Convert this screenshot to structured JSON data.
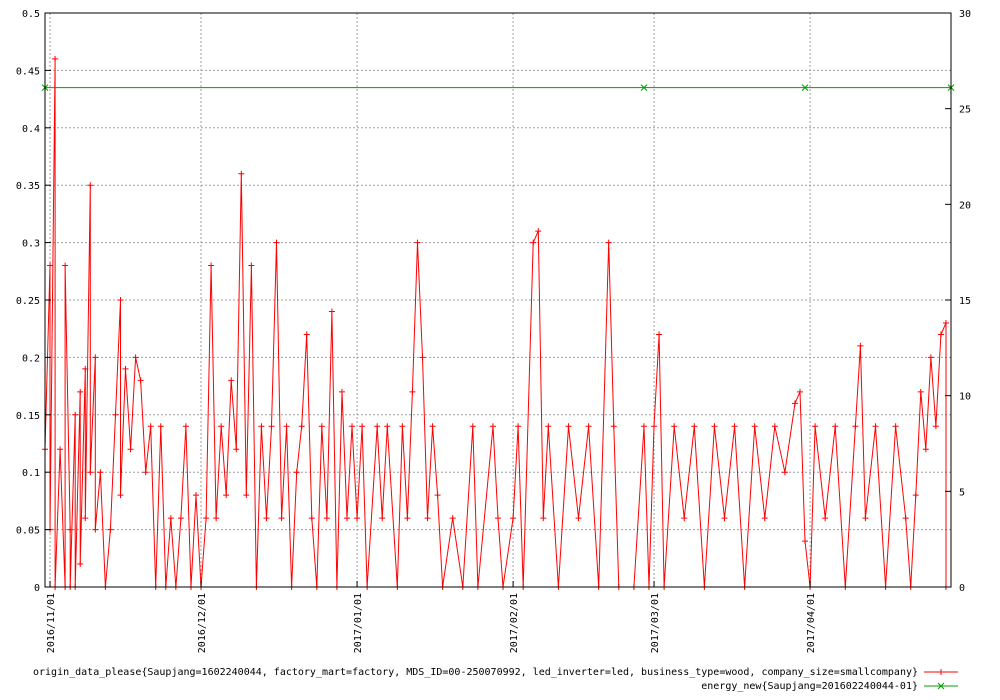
{
  "chart_data": {
    "type": "line",
    "title": "",
    "xlabel": "",
    "ylabel": "",
    "y2label": "",
    "grid": true,
    "legend_position": "bottom-right",
    "x_range": [
      "2016-10-31",
      "2017-04-29"
    ],
    "ylim": [
      0,
      0.5
    ],
    "y2lim": [
      0,
      30
    ],
    "y_ticks": [
      "0",
      "0.05",
      "0.1",
      "0.15",
      "0.2",
      "0.25",
      "0.3",
      "0.35",
      "0.4",
      "0.45",
      "0.5"
    ],
    "y2_ticks": [
      "0",
      "5",
      "10",
      "15",
      "20",
      "25",
      "30"
    ],
    "x_ticks": [
      {
        "date": "2016-11-01",
        "label": "2016/11/01"
      },
      {
        "date": "2016-12-01",
        "label": "2016/12/01"
      },
      {
        "date": "2017-01-01",
        "label": "2017/01/01"
      },
      {
        "date": "2017-02-01",
        "label": "2017/02/01"
      },
      {
        "date": "2017-03-01",
        "label": "2017/03/01"
      },
      {
        "date": "2017-04-01",
        "label": "2017/04/01"
      }
    ],
    "series": [
      {
        "name": "origin_data_please{Saupjang=1602240044, factory_mart=factory, MDS_ID=00-250070992, led_inverter=led, business_type=wood, company_size=smallcompany}",
        "axis": "y1",
        "color": "#ff0000",
        "marker": "plus",
        "points": [
          [
            "2016-10-31",
            0.12
          ],
          [
            "2016-11-01",
            0.28
          ],
          [
            "2016-11-01",
            0.05
          ],
          [
            "2016-11-02",
            0.46
          ],
          [
            "2016-11-02",
            0.0
          ],
          [
            "2016-11-03",
            0.12
          ],
          [
            "2016-11-04",
            0.0
          ],
          [
            "2016-11-04",
            0.28
          ],
          [
            "2016-11-05",
            0.05
          ],
          [
            "2016-11-05",
            0.0
          ],
          [
            "2016-11-06",
            0.15
          ],
          [
            "2016-11-06",
            0.0
          ],
          [
            "2016-11-07",
            0.17
          ],
          [
            "2016-11-07",
            0.02
          ],
          [
            "2016-11-08",
            0.19
          ],
          [
            "2016-11-08",
            0.06
          ],
          [
            "2016-11-09",
            0.35
          ],
          [
            "2016-11-09",
            0.1
          ],
          [
            "2016-11-10",
            0.2
          ],
          [
            "2016-11-10",
            0.05
          ],
          [
            "2016-11-11",
            0.1
          ],
          [
            "2016-11-12",
            0.0
          ],
          [
            "2016-11-13",
            0.05
          ],
          [
            "2016-11-14",
            0.15
          ],
          [
            "2016-11-15",
            0.25
          ],
          [
            "2016-11-15",
            0.08
          ],
          [
            "2016-11-16",
            0.19
          ],
          [
            "2016-11-17",
            0.12
          ],
          [
            "2016-11-18",
            0.2
          ],
          [
            "2016-11-19",
            0.18
          ],
          [
            "2016-11-20",
            0.1
          ],
          [
            "2016-11-21",
            0.14
          ],
          [
            "2016-11-22",
            0.0
          ],
          [
            "2016-11-23",
            0.14
          ],
          [
            "2016-11-24",
            0.0
          ],
          [
            "2016-11-25",
            0.06
          ],
          [
            "2016-11-26",
            0.0
          ],
          [
            "2016-11-27",
            0.06
          ],
          [
            "2016-11-28",
            0.14
          ],
          [
            "2016-11-29",
            0.0
          ],
          [
            "2016-11-30",
            0.08
          ],
          [
            "2016-12-01",
            0.0
          ],
          [
            "2016-12-02",
            0.06
          ],
          [
            "2016-12-03",
            0.28
          ],
          [
            "2016-12-04",
            0.06
          ],
          [
            "2016-12-05",
            0.14
          ],
          [
            "2016-12-06",
            0.08
          ],
          [
            "2016-12-07",
            0.18
          ],
          [
            "2016-12-08",
            0.12
          ],
          [
            "2016-12-09",
            0.36
          ],
          [
            "2016-12-10",
            0.08
          ],
          [
            "2016-12-11",
            0.28
          ],
          [
            "2016-12-12",
            0.0
          ],
          [
            "2016-12-13",
            0.14
          ],
          [
            "2016-12-14",
            0.06
          ],
          [
            "2016-12-15",
            0.14
          ],
          [
            "2016-12-16",
            0.3
          ],
          [
            "2016-12-17",
            0.06
          ],
          [
            "2016-12-18",
            0.14
          ],
          [
            "2016-12-19",
            0.0
          ],
          [
            "2016-12-20",
            0.1
          ],
          [
            "2016-12-21",
            0.14
          ],
          [
            "2016-12-22",
            0.22
          ],
          [
            "2016-12-23",
            0.06
          ],
          [
            "2016-12-24",
            0.0
          ],
          [
            "2016-12-25",
            0.14
          ],
          [
            "2016-12-26",
            0.06
          ],
          [
            "2016-12-27",
            0.24
          ],
          [
            "2016-12-28",
            0.0
          ],
          [
            "2016-12-29",
            0.17
          ],
          [
            "2016-12-30",
            0.06
          ],
          [
            "2016-12-31",
            0.14
          ],
          [
            "2017-01-01",
            0.06
          ],
          [
            "2017-01-02",
            0.14
          ],
          [
            "2017-01-03",
            0.0
          ],
          [
            "2017-01-05",
            0.14
          ],
          [
            "2017-01-06",
            0.06
          ],
          [
            "2017-01-07",
            0.14
          ],
          [
            "2017-01-09",
            0.0
          ],
          [
            "2017-01-10",
            0.14
          ],
          [
            "2017-01-11",
            0.06
          ],
          [
            "2017-01-12",
            0.17
          ],
          [
            "2017-01-13",
            0.3
          ],
          [
            "2017-01-14",
            0.2
          ],
          [
            "2017-01-15",
            0.06
          ],
          [
            "2017-01-16",
            0.14
          ],
          [
            "2017-01-17",
            0.08
          ],
          [
            "2017-01-18",
            0.0
          ],
          [
            "2017-01-20",
            0.06
          ],
          [
            "2017-01-22",
            0.0
          ],
          [
            "2017-01-24",
            0.14
          ],
          [
            "2017-01-25",
            0.0
          ],
          [
            "2017-01-28",
            0.14
          ],
          [
            "2017-01-29",
            0.06
          ],
          [
            "2017-01-30",
            0.0
          ],
          [
            "2017-02-01",
            0.06
          ],
          [
            "2017-02-02",
            0.14
          ],
          [
            "2017-02-03",
            0.0
          ],
          [
            "2017-02-05",
            0.3
          ],
          [
            "2017-02-06",
            0.31
          ],
          [
            "2017-02-07",
            0.06
          ],
          [
            "2017-02-08",
            0.14
          ],
          [
            "2017-02-10",
            0.0
          ],
          [
            "2017-02-12",
            0.14
          ],
          [
            "2017-02-14",
            0.06
          ],
          [
            "2017-02-16",
            0.14
          ],
          [
            "2017-02-18",
            0.0
          ],
          [
            "2017-02-20",
            0.3
          ],
          [
            "2017-02-21",
            0.14
          ],
          [
            "2017-02-22",
            0.0
          ],
          [
            "2017-02-25",
            0.0
          ],
          [
            "2017-02-27",
            0.14
          ],
          [
            "2017-02-28",
            0.0
          ],
          [
            "2017-03-01",
            0.14
          ],
          [
            "2017-03-02",
            0.22
          ],
          [
            "2017-03-03",
            0.0
          ],
          [
            "2017-03-05",
            0.14
          ],
          [
            "2017-03-07",
            0.06
          ],
          [
            "2017-03-09",
            0.14
          ],
          [
            "2017-03-11",
            0.0
          ],
          [
            "2017-03-13",
            0.14
          ],
          [
            "2017-03-15",
            0.06
          ],
          [
            "2017-03-17",
            0.14
          ],
          [
            "2017-03-19",
            0.0
          ],
          [
            "2017-03-21",
            0.14
          ],
          [
            "2017-03-23",
            0.06
          ],
          [
            "2017-03-25",
            0.14
          ],
          [
            "2017-03-27",
            0.1
          ],
          [
            "2017-03-29",
            0.16
          ],
          [
            "2017-03-30",
            0.17
          ],
          [
            "2017-03-31",
            0.04
          ],
          [
            "2017-04-01",
            0.0
          ],
          [
            "2017-04-02",
            0.14
          ],
          [
            "2017-04-04",
            0.06
          ],
          [
            "2017-04-06",
            0.14
          ],
          [
            "2017-04-08",
            0.0
          ],
          [
            "2017-04-10",
            0.14
          ],
          [
            "2017-04-11",
            0.21
          ],
          [
            "2017-04-12",
            0.06
          ],
          [
            "2017-04-14",
            0.14
          ],
          [
            "2017-04-16",
            0.0
          ],
          [
            "2017-04-18",
            0.14
          ],
          [
            "2017-04-20",
            0.06
          ],
          [
            "2017-04-21",
            0.0
          ],
          [
            "2017-04-22",
            0.08
          ],
          [
            "2017-04-23",
            0.17
          ],
          [
            "2017-04-24",
            0.12
          ],
          [
            "2017-04-25",
            0.2
          ],
          [
            "2017-04-26",
            0.14
          ],
          [
            "2017-04-27",
            0.22
          ],
          [
            "2017-04-28",
            0.23
          ],
          [
            "2017-04-28",
            0.0
          ]
        ]
      },
      {
        "name": "energy_new{Saupjang=201602240044-01}",
        "axis": "y2",
        "color": "#00a000",
        "marker": "cross",
        "points": [
          [
            "2016-10-31",
            26.1
          ],
          [
            "2017-02-27",
            26.1
          ],
          [
            "2017-03-31",
            26.1
          ],
          [
            "2017-04-29",
            26.1
          ]
        ]
      }
    ]
  }
}
